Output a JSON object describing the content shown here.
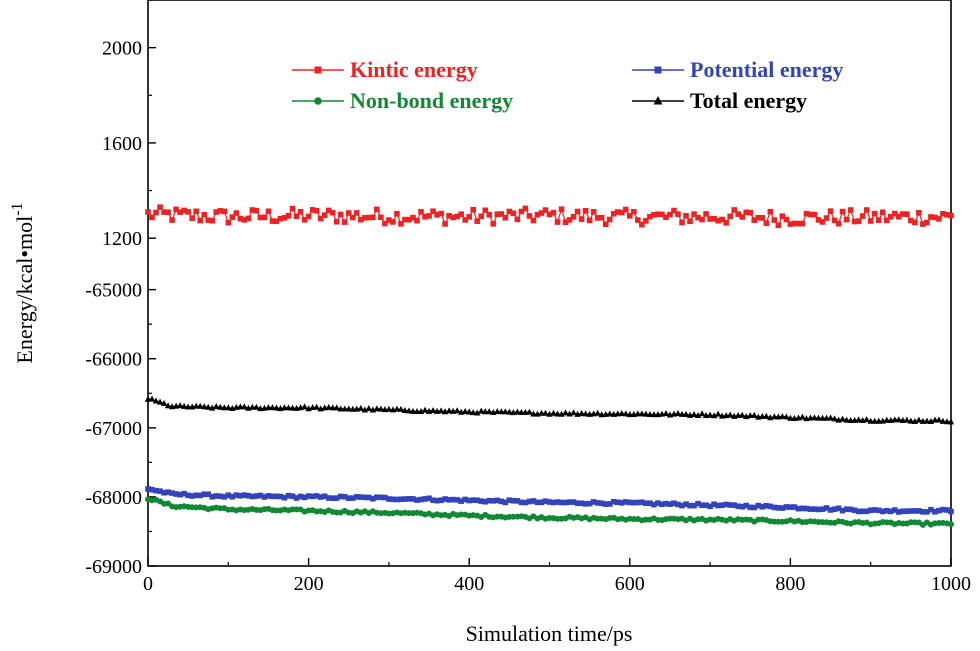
{
  "chart_data": {
    "type": "scatter",
    "title": "",
    "xlabel": "Simulation time/ps",
    "ylabel": "Energy/kcal•mol",
    "ylabel_superscript": "-1",
    "xlim": [
      0,
      1000
    ],
    "x_ticks": [
      0,
      200,
      400,
      600,
      800,
      1000
    ],
    "broken_y_axis": true,
    "upper_segment": {
      "ylim": [
        1100,
        2200
      ],
      "ticks": [
        1200,
        1600,
        2000
      ]
    },
    "lower_segment": {
      "ylim": [
        -69000,
        -64600
      ],
      "ticks": [
        -69000,
        -68000,
        -67000,
        -66000,
        -65000
      ]
    },
    "legend_position": "top",
    "series": [
      {
        "name": "Kintic energy",
        "segment": "upper",
        "color": "#ee2222",
        "marker": "square",
        "points": [
          [
            0,
            1300
          ],
          [
            100,
            1290
          ],
          [
            200,
            1295
          ],
          [
            300,
            1292
          ],
          [
            400,
            1290
          ],
          [
            500,
            1295
          ],
          [
            600,
            1288
          ],
          [
            700,
            1290
          ],
          [
            800,
            1285
          ],
          [
            900,
            1288
          ],
          [
            1000,
            1290
          ]
        ],
        "noise": 32
      },
      {
        "name": "Potential energy",
        "segment": "lower",
        "color": "#3344bb",
        "marker": "square",
        "points": [
          [
            0,
            -67880
          ],
          [
            30,
            -67960
          ],
          [
            100,
            -67990
          ],
          [
            200,
            -68000
          ],
          [
            300,
            -68020
          ],
          [
            400,
            -68050
          ],
          [
            500,
            -68080
          ],
          [
            600,
            -68090
          ],
          [
            700,
            -68120
          ],
          [
            800,
            -68150
          ],
          [
            900,
            -68200
          ],
          [
            1000,
            -68200
          ]
        ],
        "noise": 18
      },
      {
        "name": "Non-bond energy",
        "segment": "lower",
        "color": "#118833",
        "marker": "circle",
        "points": [
          [
            0,
            -68020
          ],
          [
            30,
            -68130
          ],
          [
            100,
            -68180
          ],
          [
            200,
            -68200
          ],
          [
            300,
            -68230
          ],
          [
            400,
            -68270
          ],
          [
            500,
            -68300
          ],
          [
            600,
            -68320
          ],
          [
            700,
            -68330
          ],
          [
            800,
            -68350
          ],
          [
            900,
            -68380
          ],
          [
            1000,
            -68390
          ]
        ],
        "noise": 18
      },
      {
        "name": "Total energy",
        "segment": "lower",
        "color": "#000000",
        "marker": "triangle",
        "points": [
          [
            0,
            -66580
          ],
          [
            30,
            -66690
          ],
          [
            100,
            -66710
          ],
          [
            200,
            -66710
          ],
          [
            300,
            -66740
          ],
          [
            400,
            -66770
          ],
          [
            500,
            -66790
          ],
          [
            600,
            -66800
          ],
          [
            700,
            -66810
          ],
          [
            800,
            -66850
          ],
          [
            900,
            -66890
          ],
          [
            1000,
            -66900
          ]
        ],
        "noise": 15
      }
    ]
  }
}
